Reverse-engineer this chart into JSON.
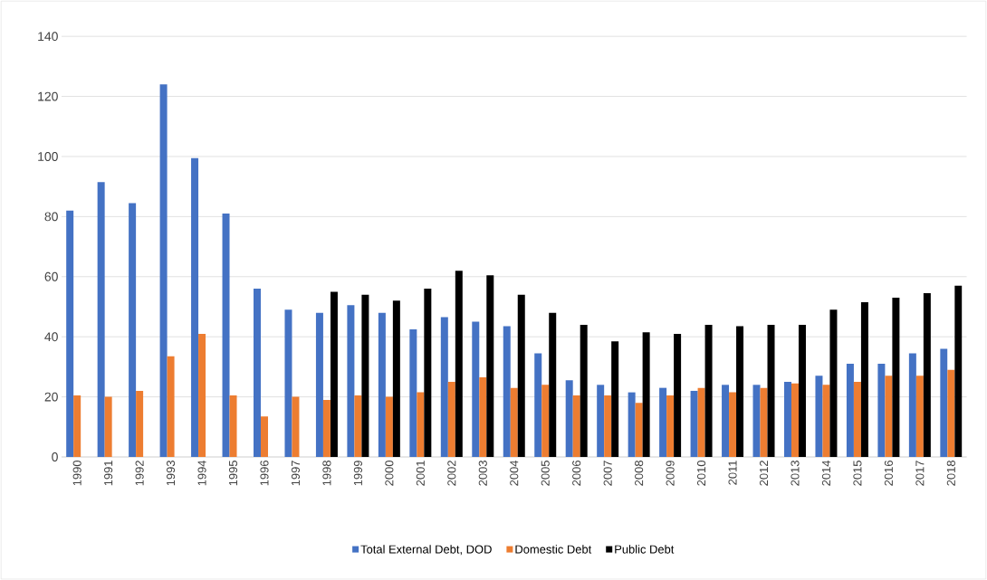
{
  "chart_data": {
    "type": "bar",
    "categories": [
      "1990",
      "1991",
      "1992",
      "1993",
      "1994",
      "1995",
      "1996",
      "1997",
      "1998",
      "1999",
      "2000",
      "2001",
      "2002",
      "2003",
      "2004",
      "2005",
      "2006",
      "2007",
      "2008",
      "2009",
      "2010",
      "2011",
      "2012",
      "2013",
      "2014",
      "2015",
      "2016",
      "2017",
      "2018"
    ],
    "series": [
      {
        "name": "Total External Debt, DOD",
        "color": "#4472c4",
        "values": [
          82,
          91.5,
          84.5,
          124,
          99.5,
          81,
          56,
          49,
          48,
          50.5,
          48,
          42.5,
          46.5,
          45,
          43.5,
          34.5,
          25.5,
          24,
          21.5,
          23,
          22,
          24,
          24,
          25,
          27,
          31,
          31,
          34.5,
          36
        ]
      },
      {
        "name": "Domestic Debt",
        "color": "#ed7d31",
        "values": [
          20.5,
          20,
          22,
          33.5,
          41,
          20.5,
          13.5,
          20,
          19,
          20.5,
          20,
          21.5,
          25,
          26.5,
          23,
          24,
          20.5,
          20.5,
          18,
          20.5,
          23,
          21.5,
          23,
          24.5,
          24,
          25,
          27,
          27,
          29
        ]
      },
      {
        "name": "Public Debt",
        "color": "#000000",
        "values": [
          null,
          null,
          null,
          null,
          null,
          null,
          null,
          null,
          55,
          54,
          52,
          56,
          62,
          60.5,
          54,
          48,
          44,
          38.5,
          41.5,
          41,
          44,
          43.5,
          44,
          44,
          49,
          51.5,
          53,
          54.5,
          57
        ]
      }
    ],
    "ylim": [
      0,
      140
    ],
    "yticks": [
      0,
      20,
      40,
      60,
      80,
      100,
      120,
      140
    ],
    "grid": "y",
    "legend": "bottom"
  }
}
